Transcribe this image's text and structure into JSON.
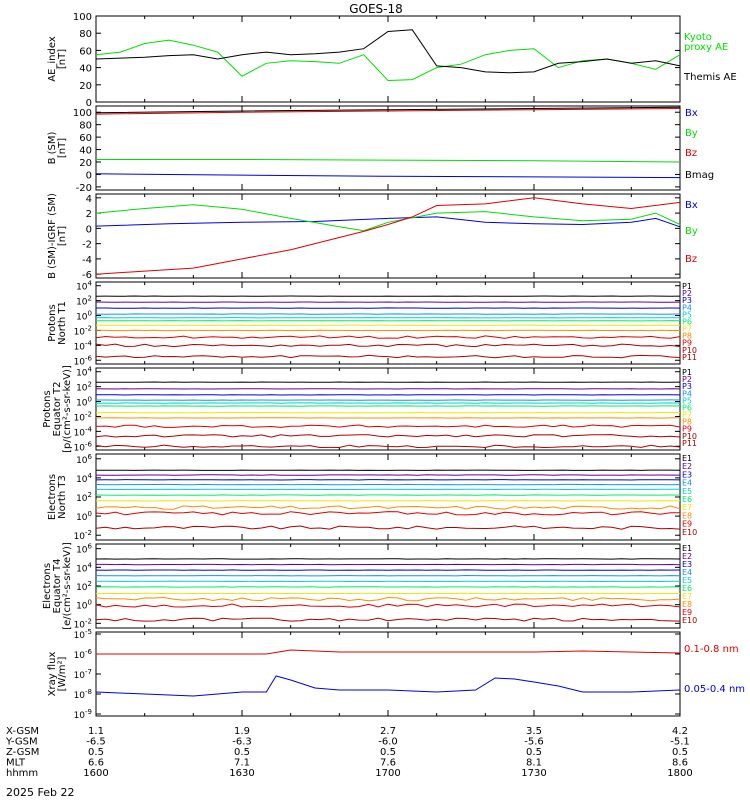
{
  "title": "GOES-18",
  "date": "2025 Feb 22",
  "colors": {
    "black": "#000000",
    "red": "#e00000",
    "green": "#00e000",
    "blue": "#0000e0",
    "darkred": "#b00000",
    "orange": "#ff8c00",
    "yellow": "#e8e800",
    "lightgreen": "#00ee66",
    "cyan": "#00d0d0",
    "skyblue": "#1090ff",
    "purple": "#6000a0"
  },
  "ephemeris": {
    "rows": [
      {
        "label": "X-GSM",
        "values": [
          "1.1",
          "1.9",
          "2.7",
          "3.5",
          "4.2"
        ]
      },
      {
        "label": "Y-GSM",
        "values": [
          "-6.5",
          "-6.3",
          "-6.0",
          "-5.6",
          "-5.1"
        ]
      },
      {
        "label": "Z-GSM",
        "values": [
          "0.5",
          "0.5",
          "0.5",
          "0.5",
          "0.5"
        ]
      },
      {
        "label": "MLT",
        "values": [
          "6.6",
          "7.1",
          "7.6",
          "8.1",
          "8.6"
        ]
      },
      {
        "label": "hhmm",
        "values": [
          "1600",
          "1630",
          "1700",
          "1730",
          "1800"
        ]
      }
    ]
  },
  "chart_data": [
    {
      "type": "line",
      "ylabel": "AE_index\n[nT]",
      "ylim": [
        0,
        100
      ],
      "yticks": [
        "0",
        "20",
        "40",
        "60",
        "80",
        "100"
      ],
      "x_range_minutes": [
        0,
        120
      ],
      "series": [
        {
          "name": "Kyoto\nproxy AE",
          "color": "green",
          "x": [
            0,
            5,
            10,
            15,
            20,
            25,
            30,
            35,
            40,
            45,
            50,
            55,
            60,
            65,
            70,
            75,
            80,
            85,
            90,
            95,
            100,
            105,
            110,
            115,
            120
          ],
          "y": [
            55,
            58,
            68,
            72,
            66,
            58,
            30,
            45,
            48,
            47,
            45,
            55,
            25,
            26,
            40,
            44,
            55,
            60,
            62,
            40,
            48,
            50,
            45,
            38,
            55
          ]
        },
        {
          "name": "Themis AE",
          "color": "black",
          "x": [
            0,
            5,
            10,
            15,
            20,
            25,
            30,
            35,
            40,
            45,
            50,
            55,
            60,
            65,
            70,
            75,
            80,
            85,
            90,
            95,
            100,
            105,
            110,
            115,
            120
          ],
          "y": [
            50,
            51,
            52,
            54,
            55,
            50,
            55,
            58,
            55,
            56,
            58,
            62,
            82,
            84,
            42,
            40,
            35,
            34,
            35,
            45,
            47,
            50,
            45,
            48,
            42
          ]
        }
      ]
    },
    {
      "type": "line",
      "ylabel": "B (SM)\n[nT]",
      "ylim": [
        -25,
        110
      ],
      "yticks": [
        "-20",
        "0",
        "20",
        "40",
        "60",
        "80",
        "100"
      ],
      "x_range_minutes": [
        0,
        120
      ],
      "series": [
        {
          "name": "Bx",
          "color": "blue",
          "x": [
            0,
            30,
            60,
            90,
            120
          ],
          "y": [
            1,
            -1,
            -3,
            -4,
            -5
          ]
        },
        {
          "name": "By",
          "color": "green",
          "x": [
            0,
            30,
            60,
            90,
            120
          ],
          "y": [
            24,
            24,
            23,
            22,
            20
          ]
        },
        {
          "name": "Bz",
          "color": "red",
          "x": [
            0,
            30,
            60,
            90,
            120
          ],
          "y": [
            97,
            100,
            102,
            104,
            106
          ]
        },
        {
          "name": "Bmag",
          "color": "black",
          "x": [
            0,
            30,
            60,
            90,
            120
          ],
          "y": [
            99,
            102,
            104,
            106,
            108
          ]
        }
      ]
    },
    {
      "type": "line",
      "ylabel": "B (SM)-IGRF (SM)\n[nT]",
      "ylim": [
        -6.5,
        4.5
      ],
      "yticks": [
        "-6",
        "-4",
        "-2",
        "0",
        "2",
        "4"
      ],
      "x_range_minutes": [
        0,
        120
      ],
      "series": [
        {
          "name": "Bx",
          "color": "blue",
          "x": [
            0,
            15,
            30,
            45,
            60,
            70,
            80,
            90,
            100,
            110,
            115,
            120
          ],
          "y": [
            0.3,
            0.6,
            0.8,
            0.9,
            1.3,
            1.5,
            0.8,
            0.6,
            0.5,
            0.8,
            1.3,
            0.2
          ]
        },
        {
          "name": "By",
          "color": "green",
          "x": [
            0,
            10,
            20,
            30,
            40,
            50,
            55,
            60,
            70,
            80,
            90,
            100,
            110,
            115,
            120
          ],
          "y": [
            2.0,
            2.6,
            3.1,
            2.5,
            1.3,
            0.2,
            -0.3,
            0.8,
            2.0,
            2.2,
            1.5,
            1.0,
            1.2,
            2.0,
            0.5
          ]
        },
        {
          "name": "Bz",
          "color": "red",
          "x": [
            0,
            10,
            20,
            30,
            40,
            50,
            55,
            60,
            65,
            70,
            80,
            90,
            100,
            110,
            120
          ],
          "y": [
            -6.0,
            -5.6,
            -5.2,
            -4.0,
            -2.8,
            -1.2,
            -0.4,
            0.5,
            1.5,
            3.0,
            3.2,
            4.0,
            3.2,
            2.6,
            3.4
          ]
        }
      ]
    },
    {
      "type": "line",
      "ylabel": "Protons\nNorth T1",
      "yscale": "log",
      "ylim": [
        -6.5,
        4.5
      ],
      "yticks": [
        "10-6",
        "10-4",
        "10-2",
        "100",
        "102",
        "104"
      ],
      "x_range_minutes": [
        0,
        120
      ],
      "series": [
        {
          "name": "P1",
          "color": "black",
          "y_log": 2.6
        },
        {
          "name": "P2",
          "color": "purple",
          "y_log": 1.8
        },
        {
          "name": "P3",
          "color": "blue",
          "y_log": 1.0
        },
        {
          "name": "P4",
          "color": "skyblue",
          "y_log": 0.2
        },
        {
          "name": "P5",
          "color": "cyan",
          "y_log": -0.3
        },
        {
          "name": "P6",
          "color": "lightgreen",
          "y_log": -0.7
        },
        {
          "name": "P7",
          "color": "yellow",
          "y_log": -1.3
        },
        {
          "name": "P8",
          "color": "orange",
          "y_log": -2.0
        },
        {
          "name": "P9",
          "color": "red",
          "y_log": -2.9
        },
        {
          "name": "P10",
          "color": "darkred",
          "y_log": -4.0
        },
        {
          "name": "P11",
          "color": "darkred",
          "y_log": -5.5
        }
      ]
    },
    {
      "type": "line",
      "ylabel": "Protons\nEquator T2\n[p/(cm²-s-sr-keV)]",
      "yscale": "log",
      "ylim": [
        -6.5,
        4.5
      ],
      "yticks": [
        "10-6",
        "10-4",
        "10-2",
        "100",
        "102",
        "104"
      ],
      "x_range_minutes": [
        0,
        120
      ],
      "series": [
        {
          "name": "P1",
          "color": "black",
          "y_log": 2.6
        },
        {
          "name": "P2",
          "color": "purple",
          "y_log": 1.7
        },
        {
          "name": "P3",
          "color": "blue",
          "y_log": 0.9
        },
        {
          "name": "P4",
          "color": "skyblue",
          "y_log": 0.2
        },
        {
          "name": "P5",
          "color": "cyan",
          "y_log": -0.2
        },
        {
          "name": "P6",
          "color": "lightgreen",
          "y_log": -0.6
        },
        {
          "name": "P7",
          "color": "yellow",
          "y_log": -1.5
        },
        {
          "name": "P8",
          "color": "orange",
          "y_log": -2.2
        },
        {
          "name": "P9",
          "color": "red",
          "y_log": -3.3
        },
        {
          "name": "P10",
          "color": "darkred",
          "y_log": -4.6
        },
        {
          "name": "P11",
          "color": "darkred",
          "y_log": -6.0
        }
      ]
    },
    {
      "type": "line",
      "ylabel": "Electrons\nNorth T3",
      "yscale": "log",
      "ylim": [
        -2.5,
        6.5
      ],
      "yticks": [
        "10-2",
        "100",
        "102",
        "104",
        "106"
      ],
      "x_range_minutes": [
        0,
        120
      ],
      "series": [
        {
          "name": "E1",
          "color": "black",
          "y_log": 4.8
        },
        {
          "name": "E2",
          "color": "purple",
          "y_log": 4.3
        },
        {
          "name": "E3",
          "color": "blue",
          "y_log": 3.8
        },
        {
          "name": "E4",
          "color": "skyblue",
          "y_log": 3.3
        },
        {
          "name": "E5",
          "color": "cyan",
          "y_log": 2.8
        },
        {
          "name": "E6",
          "color": "lightgreen",
          "y_log": 2.2
        },
        {
          "name": "E7",
          "color": "yellow",
          "y_log": 1.6
        },
        {
          "name": "E8",
          "color": "orange",
          "y_log": 0.9
        },
        {
          "name": "E9",
          "color": "red",
          "y_log": 0.3
        },
        {
          "name": "E10",
          "color": "darkred",
          "y_log": -1.2
        }
      ]
    },
    {
      "type": "line",
      "ylabel": "Electrons\nEquator T4\n[e/(cm²-s-sr-keV)]",
      "yscale": "log",
      "ylim": [
        -2.5,
        6.5
      ],
      "yticks": [
        "10-2",
        "100",
        "102",
        "104",
        "106"
      ],
      "x_range_minutes": [
        0,
        120
      ],
      "series": [
        {
          "name": "E1",
          "color": "black",
          "y_log": 4.9
        },
        {
          "name": "E2",
          "color": "purple",
          "y_log": 4.3
        },
        {
          "name": "E3",
          "color": "blue",
          "y_log": 3.7
        },
        {
          "name": "E4",
          "color": "skyblue",
          "y_log": 3.1
        },
        {
          "name": "E5",
          "color": "cyan",
          "y_log": 2.5
        },
        {
          "name": "E6",
          "color": "lightgreen",
          "y_log": 1.9
        },
        {
          "name": "E7",
          "color": "yellow",
          "y_log": 1.2
        },
        {
          "name": "E8",
          "color": "orange",
          "y_log": 0.6
        },
        {
          "name": "E9",
          "color": "red",
          "y_log": -0.1
        },
        {
          "name": "E10",
          "color": "darkred",
          "y_log": -1.6
        }
      ]
    },
    {
      "type": "line",
      "ylabel": "Xray flux\n[W/m²]",
      "yscale": "log",
      "ylim": [
        -9.1,
        -4.9
      ],
      "yticks": [
        "10-9",
        "10-8",
        "10-7",
        "10-6",
        "10-5"
      ],
      "x_range_minutes": [
        0,
        120
      ],
      "series": [
        {
          "name": "0.1-0.8 nm",
          "color": "red",
          "x": [
            0,
            20,
            35,
            40,
            50,
            60,
            80,
            90,
            100,
            110,
            120
          ],
          "y_log": [
            -6.0,
            -6.0,
            -6.0,
            -5.8,
            -5.9,
            -5.9,
            -5.9,
            -5.9,
            -5.85,
            -5.9,
            -5.95
          ]
        },
        {
          "name": "0.05-0.4 nm",
          "color": "blue",
          "x": [
            0,
            10,
            20,
            30,
            35,
            37,
            40,
            45,
            50,
            60,
            70,
            78,
            82,
            86,
            90,
            95,
            100,
            110,
            120
          ],
          "y_log": [
            -7.9,
            -8.0,
            -8.1,
            -7.9,
            -7.9,
            -7.1,
            -7.3,
            -7.7,
            -7.8,
            -7.8,
            -7.9,
            -7.8,
            -7.2,
            -7.25,
            -7.4,
            -7.6,
            -7.9,
            -7.9,
            -7.8
          ]
        }
      ]
    }
  ]
}
